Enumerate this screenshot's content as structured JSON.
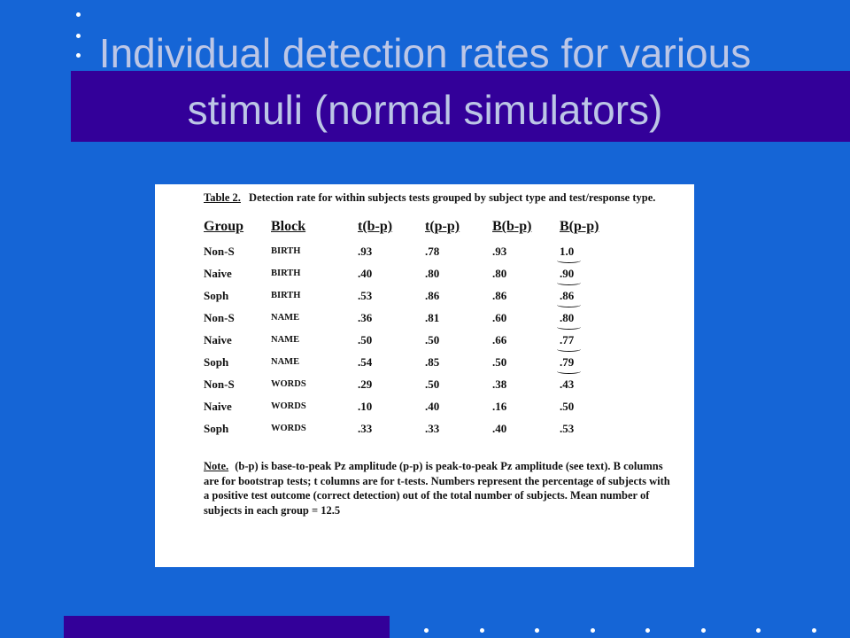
{
  "slide": {
    "title": "Individual detection rates for various stimuli (normal simulators)"
  },
  "document": {
    "caption_label": "Table 2.",
    "caption_text": "Detection rate for within subjects tests grouped by subject type and test/response type.",
    "columns": [
      "Group",
      "Block",
      "t(b-p)",
      "t(p-p)",
      "B(b-p)",
      "B(p-p)"
    ],
    "rows": [
      [
        "Non-S",
        "BIRTH",
        ".93",
        ".78",
        ".93",
        "1.0"
      ],
      [
        "Naive",
        "BIRTH",
        ".40",
        ".80",
        ".80",
        ".90"
      ],
      [
        "Soph",
        "BIRTH",
        ".53",
        ".86",
        ".86",
        ".86"
      ],
      [
        "Non-S",
        "NAME",
        ".36",
        ".81",
        ".60",
        ".80"
      ],
      [
        "Naive",
        "NAME",
        ".50",
        ".50",
        ".66",
        ".77"
      ],
      [
        "Soph",
        "NAME",
        ".54",
        ".85",
        ".50",
        ".79"
      ],
      [
        "Non-S",
        "WORDS",
        ".29",
        ".50",
        ".38",
        ".43"
      ],
      [
        "Naive",
        "WORDS",
        ".10",
        ".40",
        ".16",
        ".50"
      ],
      [
        "Soph",
        "WORDS",
        ".33",
        ".33",
        ".40",
        ".53"
      ]
    ],
    "underlined_rows": 6,
    "note_label": "Note.",
    "note_text": "(b-p) is base-to-peak Pz amplitude (p-p) is peak-to-peak Pz amplitude (see text). B columns are for bootstrap tests; t columns are for t-tests. Numbers represent the percentage of subjects with a positive test outcome (correct detection) out of the total number of subjects. Mean number of subjects in each group = 12.5"
  },
  "colors": {
    "background": "#1565d6",
    "band": "#330099",
    "title_text": "#bcc6e6",
    "dots": "#ffffff"
  }
}
